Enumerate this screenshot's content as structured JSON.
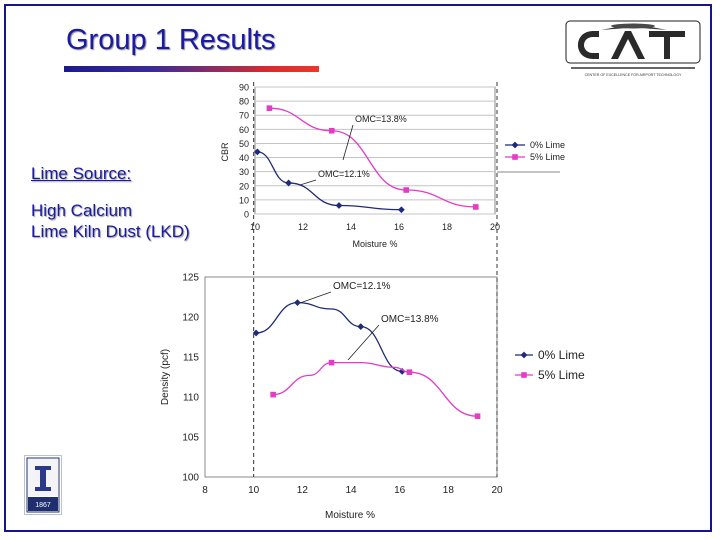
{
  "slide": {
    "title": "Group 1 Results",
    "side_heading": "Lime Source:",
    "side_lines": [
      "High Calcium",
      "Lime Kiln Dust (LKD)"
    ],
    "logo_subtext": "CENTER OF EXCELLENCE FOR AIRPORT TECHNOLOGY",
    "seal_year": "1867"
  },
  "colors": {
    "title": "#1a1aa6",
    "series_0": "#1f2a78",
    "series_5": "#e43bc8",
    "dashed_lines": "#333333"
  },
  "chart_data": [
    {
      "type": "line",
      "title": "",
      "xlabel": "Moisture %",
      "ylabel": "CBR",
      "xlim": [
        10,
        20
      ],
      "ylim": [
        0,
        90
      ],
      "x_ticks": [
        "10",
        "12",
        "14",
        "16",
        "18",
        "20"
      ],
      "y_ticks": [
        "0",
        "10",
        "20",
        "30",
        "40",
        "50",
        "60",
        "70",
        "80",
        "90"
      ],
      "grid": true,
      "legend_position": "right",
      "series": [
        {
          "name": "0% Lime",
          "marker": "diamond",
          "points": [
            [
              10.1,
              44
            ],
            [
              11.4,
              22
            ],
            [
              13.5,
              6
            ],
            [
              16.1,
              3
            ]
          ]
        },
        {
          "name": "5% Lime",
          "marker": "square",
          "points": [
            [
              10.6,
              75
            ],
            [
              13.2,
              59
            ],
            [
              16.3,
              17
            ],
            [
              19.2,
              5
            ]
          ]
        }
      ],
      "annotations": [
        {
          "text": "OMC=13.8%",
          "x": 14.0,
          "y": 63
        },
        {
          "text": "OMC=12.1%",
          "x": 12.3,
          "y": 28
        }
      ]
    },
    {
      "type": "line",
      "title": "",
      "xlabel": "Moisture %",
      "ylabel": "Density (pcf)",
      "xlim": [
        8,
        20
      ],
      "ylim": [
        100,
        125
      ],
      "x_ticks": [
        "8",
        "10",
        "12",
        "14",
        "16",
        "18",
        "20"
      ],
      "y_ticks": [
        "100",
        "105",
        "110",
        "115",
        "120",
        "125"
      ],
      "grid": false,
      "legend_position": "right",
      "series": [
        {
          "name": "0% Lime",
          "marker": "diamond",
          "points": [
            [
              10.1,
              118
            ],
            [
              11.8,
              121.8
            ],
            [
              13.2,
              121
            ],
            [
              14.4,
              118.8
            ],
            [
              16.1,
              113.2
            ]
          ]
        },
        {
          "name": "5% Lime",
          "marker": "square",
          "points": [
            [
              10.8,
              110.3
            ],
            [
              12.3,
              112.7
            ],
            [
              13.2,
              114.3
            ],
            [
              14.4,
              114.3
            ],
            [
              15.8,
              113.7
            ],
            [
              16.4,
              113.1
            ],
            [
              19.2,
              107.6
            ]
          ]
        }
      ],
      "annotations": [
        {
          "text": "OMC=12.1%",
          "x": 12.3,
          "y": 120.9
        },
        {
          "text": "OMC=13.8%",
          "x": 14.0,
          "y": 114.5
        }
      ],
      "reference_lines_x": [
        10,
        20
      ]
    }
  ]
}
